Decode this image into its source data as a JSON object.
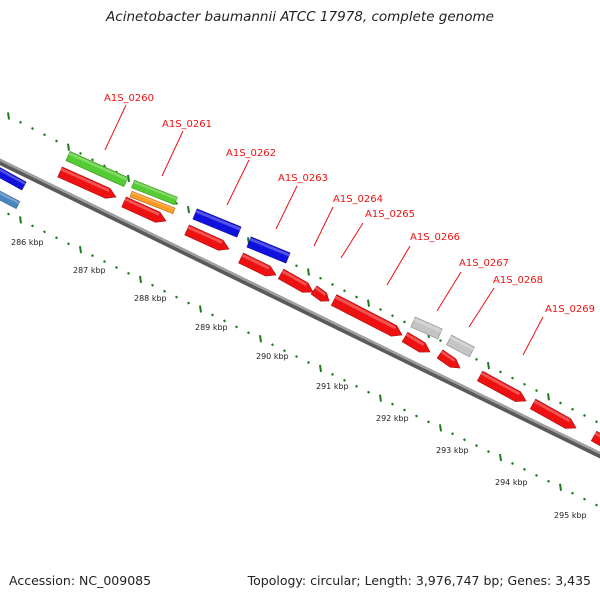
{
  "header": {
    "title": "Acinetobacter baumannii ATCC 17978, complete genome"
  },
  "footer": {
    "accession": "Accession: NC_009085",
    "topology": "Topology: circular; Length: 3,976,747 bp; Genes: 3,435"
  },
  "colors": {
    "label": "#ee1111",
    "leader": "#ee1111",
    "backbone": "#8a8a8a",
    "ticks": "#1f7a1f",
    "red": "#ee1111",
    "green": "#55cc33",
    "orange": "#ff9a22",
    "blue": "#1111dd",
    "steel": "#4a86c0",
    "gray": "#c4c4c4"
  },
  "scale_labels": [
    "286 kbp",
    "287 kbp",
    "288 kbp",
    "289 kbp",
    "290 kbp",
    "291 kbp",
    "292 kbp",
    "293 kbp",
    "294 kbp",
    "295 kbp"
  ],
  "gene_labels": [
    "A1S_0260",
    "A1S_0261",
    "A1S_0262",
    "A1S_0263",
    "A1S_0264",
    "A1S_0265",
    "A1S_0266",
    "A1S_0267",
    "A1S_0268",
    "A1S_0269"
  ]
}
